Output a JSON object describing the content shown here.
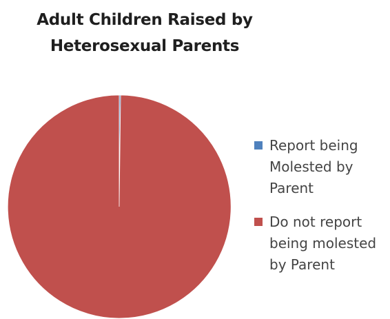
{
  "chart_data": {
    "type": "pie",
    "title_lines": [
      "Adult Children Raised by",
      "Heterosexual Parents"
    ],
    "slices": [
      {
        "label": "Report being Molested by Parent",
        "label_lines": [
          "Report being",
          "Molested by",
          "Parent"
        ],
        "value": 0.2,
        "color": "#4f81bd"
      },
      {
        "label": "Do not report being molested by Parent",
        "label_lines": [
          "Do not report",
          "being molested",
          "by Parent"
        ],
        "value": 99.8,
        "color": "#c0504d"
      }
    ],
    "legend_position": "right"
  }
}
